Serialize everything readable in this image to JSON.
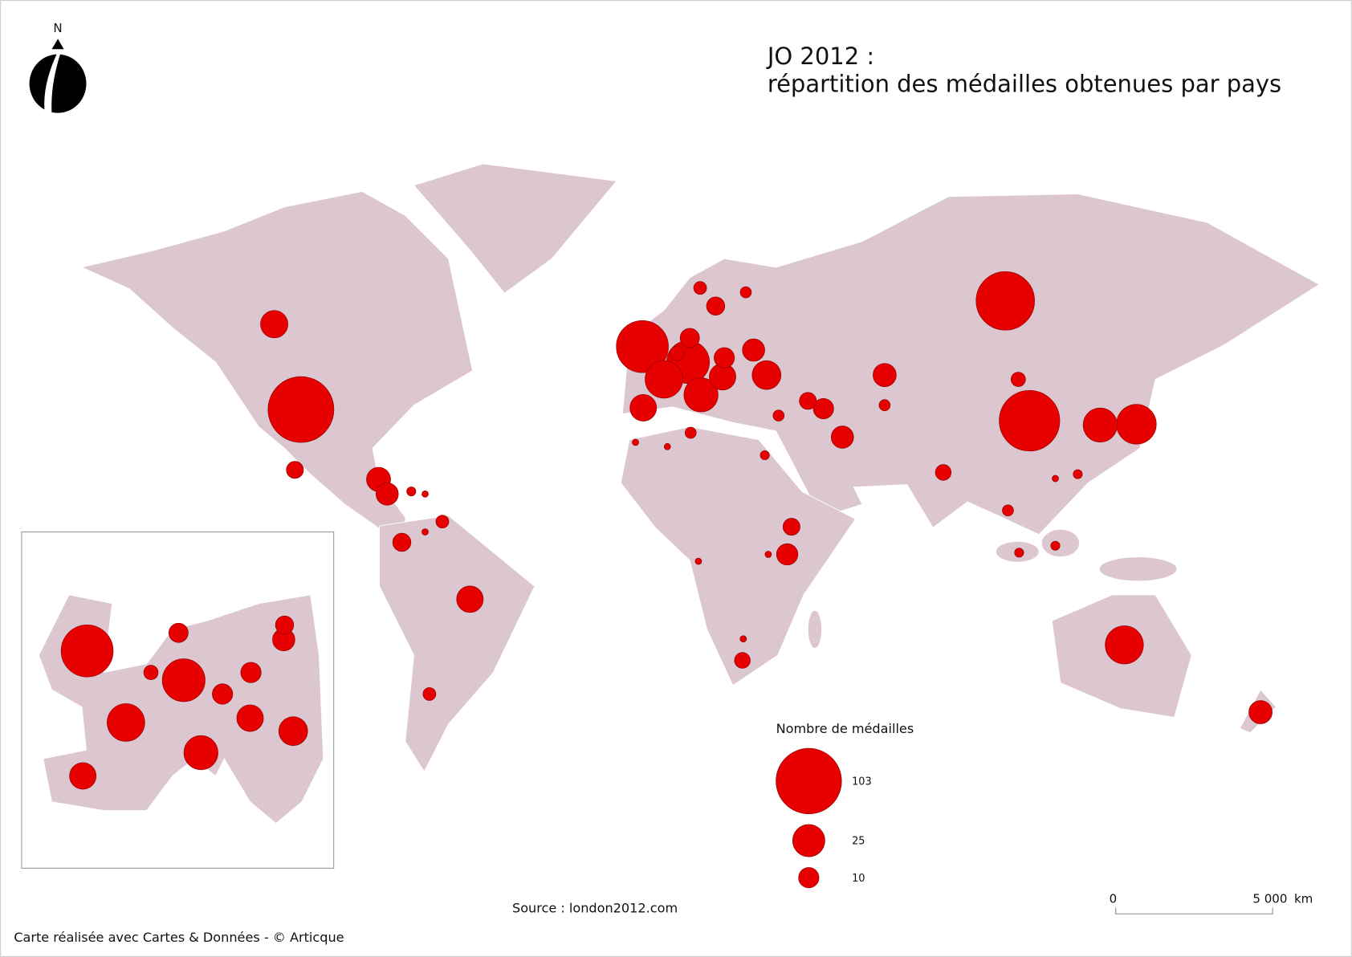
{
  "header": {
    "north": "N",
    "title": [
      "JO 2012 :",
      "répartition des médailles obtenues par pays"
    ]
  },
  "map": {
    "circles": [
      104,
      88,
      82,
      65,
      44,
      34,
      38,
      28,
      28,
      35,
      18,
      17,
      17,
      20,
      13,
      12,
      17,
      13,
      14,
      12,
      11,
      7,
      12,
      10,
      8,
      9,
      7,
      3,
      10,
      7,
      6,
      8,
      4,
      6,
      3,
      5,
      4,
      3,
      2,
      3,
      4,
      1,
      1,
      1,
      2,
      2,
      2,
      1,
      2,
      1,
      3,
      1,
      1,
      1,
      5
    ]
  },
  "legend": {
    "title": "Nombre de médailles",
    "values": [
      103,
      25,
      10
    ]
  },
  "scale_bar": {
    "ticks": [
      0,
      {
        "value": 5000,
        "label": "5 000"
      }
    ],
    "unit": "km"
  },
  "footer": {
    "source": "Source : london2012.com",
    "credit": "Carte réalisée avec Cartes & Données - © Articque"
  }
}
